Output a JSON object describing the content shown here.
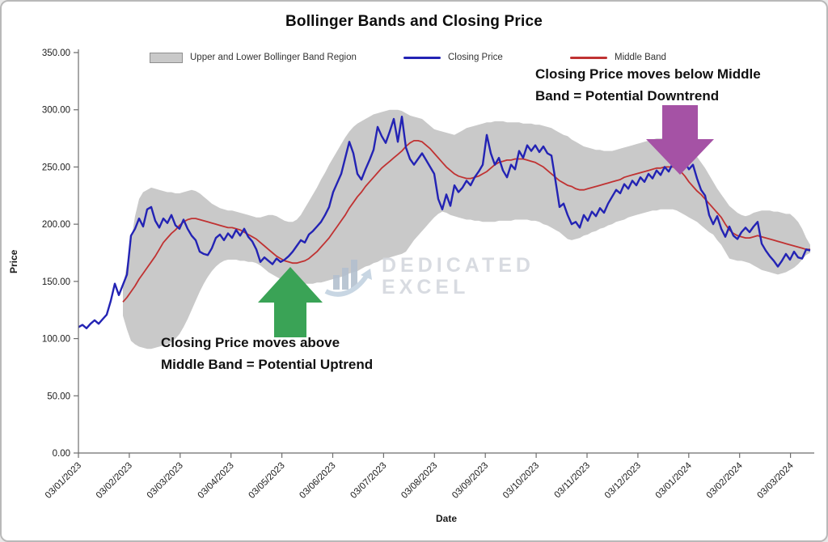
{
  "chart_data": {
    "type": "line",
    "title": "Bollinger Bands and Closing Price",
    "xlabel": "Date",
    "ylabel": "Price",
    "ylim": [
      0,
      350
    ],
    "grid": false,
    "y_tick_labels": [
      "0.00",
      "50.00",
      "100.00",
      "150.00",
      "200.00",
      "250.00",
      "300.00",
      "350.00"
    ],
    "x_tick_labels": [
      "03/01/2023",
      "03/02/2023",
      "03/03/2023",
      "03/04/2023",
      "03/05/2023",
      "03/06/2023",
      "03/07/2023",
      "03/08/2023",
      "03/09/2023",
      "03/10/2023",
      "03/11/2023",
      "03/12/2023",
      "03/01/2024",
      "03/02/2024",
      "03/03/2024"
    ],
    "x_description": "Daily price series from 03/01/2023 to 03/03/2024; 182 evenly spaced samples across the axis, monthly tick labels",
    "legend": {
      "position": "top",
      "items": [
        {
          "label": "Upper and Lower Bollinger Band Region",
          "swatch": "area",
          "color": "#c9c9c9"
        },
        {
          "label": "Closing Price",
          "swatch": "line",
          "color": "#2323b4"
        },
        {
          "label": "Middle Band",
          "swatch": "line",
          "color": "#c03232"
        }
      ]
    },
    "series": [
      {
        "name": "Closing Price",
        "color": "#2323b4",
        "values": [
          110,
          112,
          109,
          113,
          116,
          113,
          117,
          121,
          133,
          148,
          138,
          147,
          156,
          190,
          196,
          205,
          198,
          213,
          215,
          203,
          197,
          205,
          201,
          208,
          199,
          196,
          204,
          196,
          190,
          186,
          176,
          174,
          173,
          179,
          188,
          191,
          186,
          192,
          188,
          195,
          190,
          196,
          189,
          185,
          178,
          167,
          171,
          168,
          165,
          170,
          167,
          169,
          172,
          176,
          181,
          186,
          184,
          191,
          194,
          198,
          202,
          208,
          215,
          228,
          236,
          244,
          258,
          272,
          262,
          244,
          239,
          248,
          256,
          265,
          285,
          277,
          271,
          281,
          292,
          272,
          294,
          267,
          257,
          252,
          257,
          262,
          256,
          250,
          244,
          222,
          213,
          226,
          216,
          234,
          228,
          232,
          238,
          234,
          241,
          246,
          252,
          278,
          262,
          252,
          258,
          247,
          241,
          252,
          248,
          264,
          258,
          269,
          264,
          269,
          263,
          268,
          262,
          260,
          238,
          215,
          218,
          208,
          200,
          202,
          197,
          208,
          203,
          211,
          207,
          214,
          210,
          218,
          224,
          230,
          227,
          235,
          231,
          238,
          234,
          241,
          237,
          244,
          240,
          247,
          243,
          250,
          246,
          253,
          257,
          250,
          254,
          248,
          252,
          240,
          230,
          225,
          208,
          200,
          207,
          196,
          189,
          198,
          190,
          187,
          193,
          197,
          193,
          198,
          202,
          183,
          177,
          172,
          168,
          163,
          168,
          174,
          169,
          176,
          171,
          170,
          178,
          177
        ]
      },
      {
        "name": "Middle Band",
        "color": "#c03232",
        "values": [
          null,
          null,
          null,
          null,
          null,
          null,
          null,
          null,
          null,
          null,
          null,
          132,
          136,
          141,
          146,
          152,
          157,
          162,
          167,
          172,
          178,
          184,
          188,
          192,
          195,
          199,
          202,
          204,
          205,
          205,
          204,
          203,
          202,
          201,
          200,
          199,
          198,
          197,
          197,
          196,
          195,
          193,
          191,
          189,
          187,
          184,
          181,
          178,
          175,
          172,
          170,
          168,
          167,
          166,
          166,
          167,
          168,
          170,
          173,
          176,
          180,
          184,
          188,
          193,
          198,
          203,
          208,
          214,
          219,
          224,
          228,
          233,
          237,
          241,
          245,
          249,
          252,
          255,
          258,
          261,
          264,
          268,
          271,
          273,
          273,
          272,
          269,
          266,
          262,
          258,
          254,
          250,
          247,
          244,
          242,
          241,
          240,
          240,
          241,
          242,
          244,
          246,
          249,
          252,
          254,
          255,
          256,
          256,
          257,
          257,
          257,
          256,
          255,
          254,
          252,
          250,
          247,
          244,
          241,
          238,
          236,
          234,
          233,
          231,
          230,
          230,
          231,
          232,
          233,
          234,
          235,
          236,
          237,
          238,
          239,
          241,
          242,
          243,
          244,
          245,
          246,
          247,
          248,
          249,
          249,
          250,
          250,
          250,
          249,
          246,
          242,
          237,
          233,
          229,
          226,
          222,
          218,
          214,
          210,
          206,
          200,
          195,
          192,
          190,
          189,
          188,
          188,
          189,
          190,
          189,
          188,
          187,
          186,
          185,
          184,
          183,
          182,
          181,
          180,
          179,
          178,
          178
        ]
      },
      {
        "name": "Upper Bollinger Band",
        "color": "#c9c9c9",
        "values": [
          null,
          null,
          null,
          null,
          null,
          null,
          null,
          null,
          null,
          null,
          null,
          145,
          165,
          185,
          207,
          222,
          228,
          230,
          232,
          231,
          230,
          229,
          228,
          228,
          227,
          227,
          228,
          229,
          230,
          229,
          227,
          224,
          221,
          218,
          216,
          214,
          213,
          212,
          212,
          211,
          210,
          209,
          208,
          207,
          206,
          206,
          207,
          208,
          208,
          207,
          205,
          203,
          202,
          202,
          204,
          208,
          214,
          220,
          226,
          232,
          239,
          245,
          252,
          258,
          264,
          270,
          276,
          281,
          285,
          288,
          290,
          292,
          294,
          296,
          297,
          298,
          299,
          300,
          300,
          300,
          299,
          297,
          295,
          294,
          293,
          292,
          289,
          286,
          283,
          282,
          281,
          280,
          279,
          278,
          280,
          282,
          284,
          285,
          286,
          287,
          288,
          289,
          289,
          290,
          290,
          290,
          289,
          289,
          289,
          289,
          288,
          288,
          288,
          287,
          287,
          286,
          285,
          284,
          282,
          280,
          278,
          277,
          274,
          272,
          270,
          268,
          267,
          266,
          265,
          265,
          264,
          264,
          264,
          265,
          266,
          267,
          268,
          269,
          270,
          271,
          272,
          273,
          274,
          275,
          275,
          276,
          276,
          276,
          275,
          273,
          270,
          267,
          263,
          259,
          254,
          249,
          243,
          237,
          231,
          226,
          221,
          216,
          213,
          210,
          208,
          207,
          208,
          210,
          211,
          212,
          212,
          212,
          211,
          211,
          210,
          209,
          209,
          206,
          202,
          196,
          188,
          182
        ]
      },
      {
        "name": "Lower Bollinger Band",
        "color": "#c9c9c9",
        "values": [
          null,
          null,
          null,
          null,
          null,
          null,
          null,
          null,
          null,
          null,
          null,
          120,
          108,
          98,
          95,
          93,
          92,
          91,
          91,
          92,
          93,
          94,
          95,
          97,
          100,
          104,
          110,
          117,
          125,
          133,
          141,
          148,
          154,
          159,
          163,
          166,
          168,
          169,
          169,
          169,
          168,
          168,
          167,
          167,
          166,
          164,
          161,
          158,
          156,
          154,
          152,
          151,
          150,
          150,
          149,
          149,
          148,
          148,
          148,
          149,
          149,
          150,
          151,
          152,
          153,
          154,
          155,
          157,
          158,
          159,
          161,
          163,
          164,
          166,
          167,
          169,
          170,
          171,
          172,
          173,
          174,
          176,
          181,
          186,
          190,
          194,
          198,
          202,
          206,
          209,
          211,
          210,
          208,
          207,
          206,
          205,
          204,
          204,
          203,
          203,
          202,
          202,
          202,
          202,
          203,
          203,
          203,
          203,
          204,
          204,
          204,
          204,
          203,
          203,
          202,
          200,
          199,
          197,
          195,
          193,
          190,
          187,
          186,
          187,
          188,
          190,
          191,
          193,
          194,
          196,
          197,
          199,
          200,
          202,
          203,
          204,
          206,
          207,
          208,
          209,
          210,
          211,
          212,
          212,
          213,
          213,
          213,
          213,
          212,
          210,
          208,
          206,
          204,
          202,
          199,
          196,
          193,
          191,
          186,
          182,
          176,
          170,
          169,
          168,
          168,
          167,
          166,
          164,
          162,
          160,
          159,
          158,
          157,
          156,
          157,
          158,
          160,
          162,
          165,
          169,
          173,
          175
        ]
      }
    ],
    "annotations": [
      {
        "lines": [
          "Closing Price moves above",
          "Middle Band = Potential Uptrend"
        ],
        "arrow": "up",
        "arrow_color": "#3aa356"
      },
      {
        "lines": [
          "Closing Price moves below Middle",
          "Band = Potential Downtrend"
        ],
        "arrow": "down",
        "arrow_color": "#a552a5"
      }
    ],
    "watermark": {
      "line1": "DEDICATED",
      "line2": "EXCEL"
    }
  }
}
